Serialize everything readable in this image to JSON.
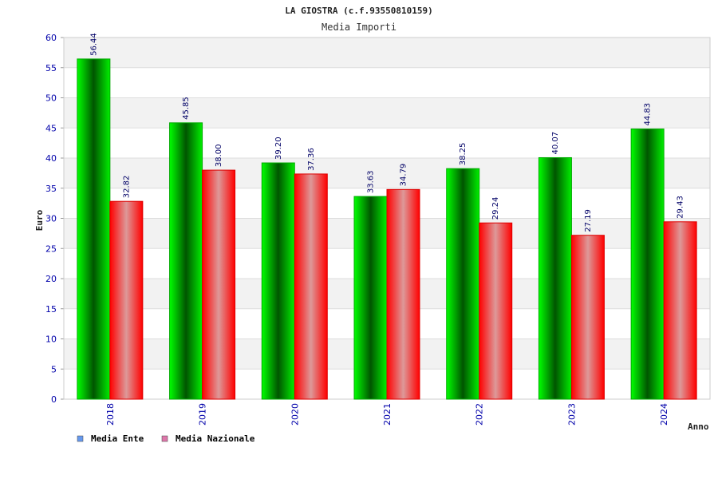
{
  "chart_data": {
    "type": "bar",
    "title": "LA GIOSTRA (c.f.93550810159)",
    "subtitle": "Media Importi",
    "xlabel": "Anno",
    "ylabel": "Euro",
    "categories": [
      "2018",
      "2019",
      "2020",
      "2021",
      "2022",
      "2023",
      "2024"
    ],
    "series": [
      {
        "name": "Media Ente",
        "values": [
          56.44,
          45.85,
          39.2,
          33.63,
          38.25,
          40.07,
          44.83
        ],
        "labels": [
          "56.44",
          "45.85",
          "39.20",
          "33.63",
          "38.25",
          "40.07",
          "44.83"
        ],
        "color": "#00cc00"
      },
      {
        "name": "Media Nazionale",
        "values": [
          32.82,
          38.0,
          37.36,
          34.79,
          29.24,
          27.19,
          29.43
        ],
        "labels": [
          "32.82",
          "38.00",
          "37.36",
          "34.79",
          "29.24",
          "27.19",
          "29.43"
        ],
        "color": "#ff1a1a"
      }
    ],
    "ylim": [
      0,
      60
    ],
    "yticks": [
      0,
      5,
      10,
      15,
      20,
      25,
      30,
      35,
      40,
      45,
      50,
      55,
      60
    ],
    "grid": true,
    "legend_placement": "bottom-left",
    "legend_colors": [
      "#6699ee",
      "#dd77aa"
    ]
  }
}
